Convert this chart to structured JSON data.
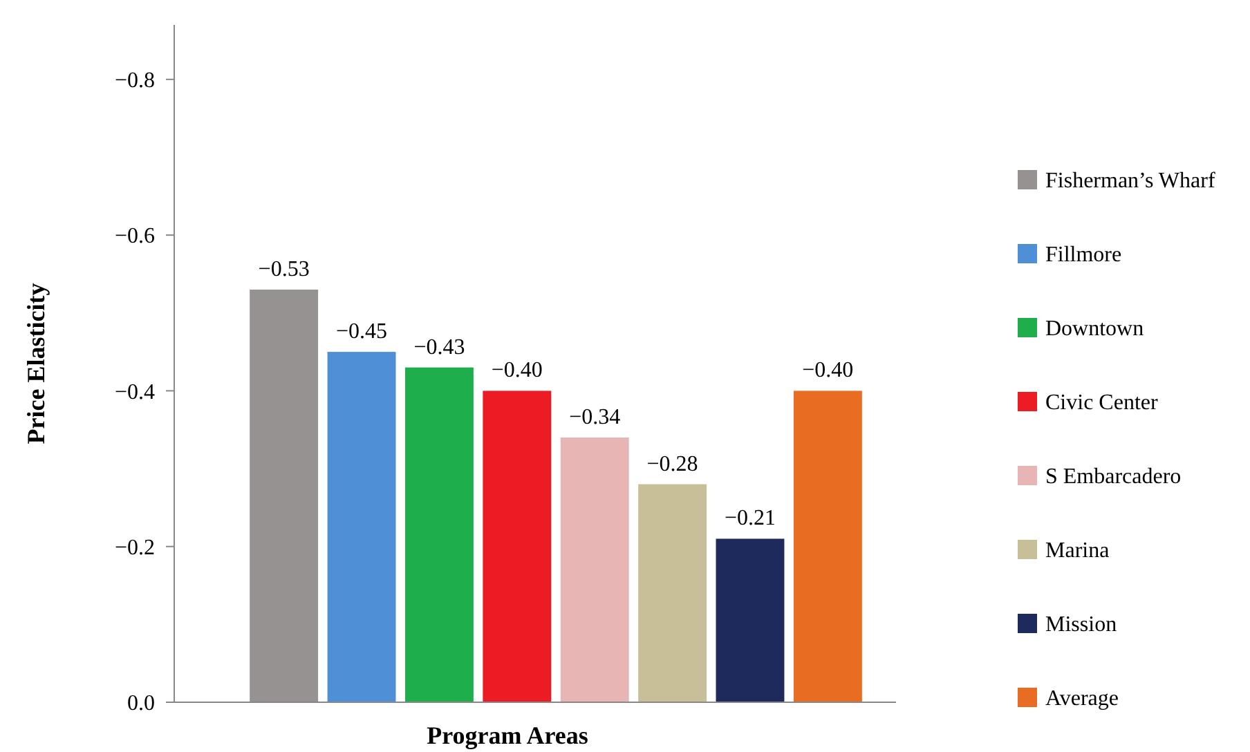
{
  "chart_data": {
    "type": "bar",
    "ylabel": "Price Elasticity",
    "xlabel": "Program Areas",
    "categories": [
      null
    ],
    "ylim": [
      0,
      -0.87
    ],
    "yticks": [
      {
        "value": 0,
        "label": "0.0"
      },
      {
        "value": -0.2,
        "label": "−0.2"
      },
      {
        "value": -0.4,
        "label": "−0.4"
      },
      {
        "value": -0.6,
        "label": "−0.6"
      },
      {
        "value": -0.8,
        "label": "−0.8"
      }
    ],
    "grid": false,
    "legend": "right",
    "series": [
      {
        "name": "Fisherman’s Wharf",
        "color": "#959291",
        "values": [
          -0.53
        ],
        "value_labels": [
          "−0.53"
        ]
      },
      {
        "name": "Fillmore",
        "color": "#4f8fd6",
        "values": [
          -0.45
        ],
        "value_labels": [
          "−0.45"
        ]
      },
      {
        "name": "Downtown",
        "color": "#1fae4c",
        "values": [
          -0.43
        ],
        "value_labels": [
          "−0.43"
        ]
      },
      {
        "name": "Civic Center",
        "color": "#ec1c24",
        "values": [
          -0.4
        ],
        "value_labels": [
          "−0.40"
        ]
      },
      {
        "name": "S Embarcadero",
        "color": "#e8b5b5",
        "values": [
          -0.34
        ],
        "value_labels": [
          "−0.34"
        ]
      },
      {
        "name": "Marina",
        "color": "#c8bf98",
        "values": [
          -0.28
        ],
        "value_labels": [
          "−0.28"
        ]
      },
      {
        "name": "Mission",
        "color": "#1e2a5c",
        "values": [
          -0.21
        ],
        "value_labels": [
          "−0.21"
        ]
      },
      {
        "name": "Average",
        "color": "#e86c22",
        "values": [
          -0.4
        ],
        "value_labels": [
          "−0.40"
        ]
      }
    ]
  }
}
